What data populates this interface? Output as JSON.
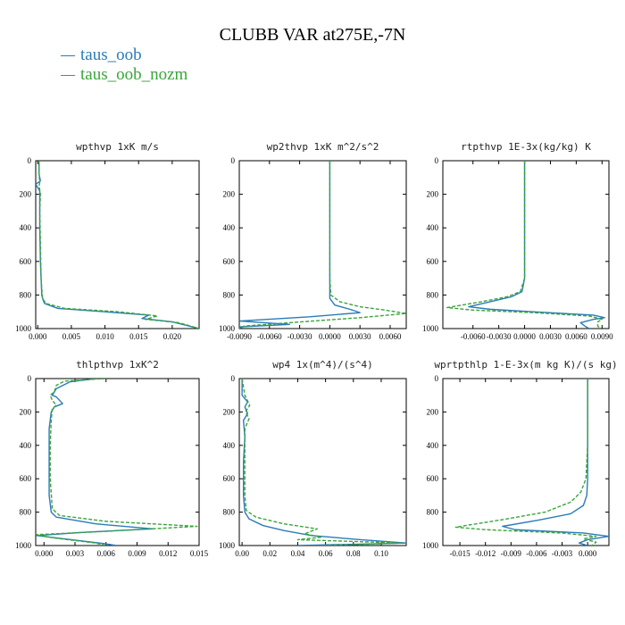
{
  "title": "CLUBB VAR at275E,-7N",
  "legend": [
    {
      "name": "taus_oob",
      "color": "#2b7bb9",
      "dash": "solid"
    },
    {
      "name": "taus_oob_nozm",
      "color": "#3aa53a",
      "dash": "dashed"
    }
  ],
  "chart_data": [
    {
      "type": "line",
      "title": "wpthvp 1xK m/s",
      "xlim": [
        -0.0003,
        0.024
      ],
      "ylim": [
        1000,
        0
      ],
      "xticks": [
        0.0,
        0.005,
        0.01,
        0.015,
        0.02
      ],
      "xtick_labels": [
        "0.000",
        "0.005",
        "0.010",
        "0.015",
        "0.020"
      ],
      "yticks": [
        0,
        200,
        400,
        600,
        800,
        1000
      ],
      "ytick_labels": [
        "0",
        "200",
        "400",
        "600",
        "800",
        "1000"
      ],
      "series": [
        {
          "name": "taus_oob",
          "points": [
            [
              0.0002,
              0
            ],
            [
              0.0002,
              80
            ],
            [
              0.0004,
              120
            ],
            [
              -0.0003,
              140
            ],
            [
              0.0003,
              180
            ],
            [
              0.0003,
              250
            ],
            [
              0.0003,
              400
            ],
            [
              0.0004,
              600
            ],
            [
              0.0006,
              800
            ],
            [
              0.0008,
              830
            ],
            [
              0.001,
              850
            ],
            [
              0.003,
              880
            ],
            [
              0.01,
              900
            ],
            [
              0.0165,
              920
            ],
            [
              0.0155,
              940
            ],
            [
              0.02,
              960
            ],
            [
              0.024,
              1000
            ]
          ]
        },
        {
          "name": "taus_oob_nozm",
          "points": [
            [
              0.0002,
              0
            ],
            [
              0.0002,
              80
            ],
            [
              0.0003,
              130
            ],
            [
              0.0002,
              150
            ],
            [
              0.0004,
              200
            ],
            [
              0.0003,
              300
            ],
            [
              0.0004,
              500
            ],
            [
              0.0005,
              700
            ],
            [
              0.0007,
              820
            ],
            [
              0.0012,
              850
            ],
            [
              0.004,
              880
            ],
            [
              0.012,
              900
            ],
            [
              0.0178,
              925
            ],
            [
              0.016,
              945
            ],
            [
              0.021,
              965
            ],
            [
              0.024,
              1000
            ]
          ]
        }
      ]
    },
    {
      "type": "line",
      "title": "wp2thvp 1xK m^2/s^2",
      "xlim": [
        -0.009,
        0.0076
      ],
      "ylim": [
        1000,
        0
      ],
      "xticks": [
        -0.009,
        -0.006,
        -0.003,
        0.0,
        0.003,
        0.006
      ],
      "xtick_labels": [
        "-0.0090",
        "-0.0060",
        "-0.0030",
        "0.0000",
        "0.0030",
        "0.0060"
      ],
      "yticks": [
        0,
        200,
        400,
        600,
        800,
        1000
      ],
      "ytick_labels": [
        "0",
        "200",
        "400",
        "600",
        "800",
        "1000"
      ],
      "series": [
        {
          "name": "taus_oob",
          "points": [
            [
              0.0,
              0
            ],
            [
              0.0,
              400
            ],
            [
              0.0,
              700
            ],
            [
              0.0,
              820
            ],
            [
              0.0005,
              860
            ],
            [
              0.002,
              885
            ],
            [
              0.003,
              905
            ],
            [
              -0.002,
              930
            ],
            [
              -0.009,
              955
            ],
            [
              -0.004,
              975
            ],
            [
              -0.009,
              990
            ],
            [
              -0.0085,
              1000
            ]
          ]
        },
        {
          "name": "taus_oob_nozm",
          "points": [
            [
              0.0,
              0
            ],
            [
              0.0,
              400
            ],
            [
              0.0,
              700
            ],
            [
              0.0001,
              800
            ],
            [
              0.001,
              840
            ],
            [
              0.003,
              870
            ],
            [
              0.0055,
              890
            ],
            [
              0.0076,
              910
            ],
            [
              0.003,
              935
            ],
            [
              -0.004,
              965
            ],
            [
              -0.0085,
              985
            ],
            [
              -0.009,
              1000
            ]
          ]
        }
      ]
    },
    {
      "type": "line",
      "title": "rtpthvp 1E-3x(kg/kg) K",
      "xlim": [
        -0.0095,
        0.0098
      ],
      "ylim": [
        1000,
        0
      ],
      "xticks": [
        -0.006,
        -0.003,
        0.0,
        0.003,
        0.006,
        0.009
      ],
      "xtick_labels": [
        "-0.0060",
        "-0.0030",
        "0.0000",
        "0.0030",
        "0.0060",
        "0.0090"
      ],
      "yticks": [
        0,
        200,
        400,
        600,
        800,
        1000
      ],
      "ytick_labels": [
        "0",
        "200",
        "400",
        "600",
        "800",
        "1000"
      ],
      "series": [
        {
          "name": "taus_oob",
          "points": [
            [
              0.0,
              0
            ],
            [
              0.0,
              400
            ],
            [
              0.0,
              700
            ],
            [
              -0.0003,
              780
            ],
            [
              -0.0015,
              810
            ],
            [
              -0.004,
              840
            ],
            [
              -0.0065,
              870
            ],
            [
              -0.004,
              885
            ],
            [
              0.001,
              900
            ],
            [
              0.008,
              920
            ],
            [
              0.0093,
              935
            ],
            [
              0.008,
              945
            ],
            [
              0.0065,
              965
            ],
            [
              0.007,
              985
            ],
            [
              0.0075,
              1000
            ]
          ]
        },
        {
          "name": "taus_oob_nozm",
          "points": [
            [
              0.0,
              0
            ],
            [
              0.0,
              400
            ],
            [
              0.0,
              700
            ],
            [
              -0.0005,
              780
            ],
            [
              -0.002,
              810
            ],
            [
              -0.005,
              840
            ],
            [
              -0.009,
              875
            ],
            [
              -0.006,
              890
            ],
            [
              0.001,
              905
            ],
            [
              0.0075,
              925
            ],
            [
              0.009,
              945
            ],
            [
              0.0085,
              960
            ],
            [
              0.0085,
              985
            ],
            [
              0.0088,
              1000
            ]
          ]
        }
      ]
    },
    {
      "type": "line",
      "title": "thlpthvp 1xK^2",
      "xlim": [
        -0.0008,
        0.015
      ],
      "ylim": [
        1000,
        0
      ],
      "xticks": [
        0.0,
        0.003,
        0.006,
        0.009,
        0.012,
        0.015
      ],
      "xtick_labels": [
        "0.000",
        "0.003",
        "0.006",
        "0.009",
        "0.012",
        "0.015"
      ],
      "yticks": [
        0,
        200,
        400,
        600,
        800,
        1000
      ],
      "ytick_labels": [
        "0",
        "200",
        "400",
        "600",
        "800",
        "1000"
      ],
      "series": [
        {
          "name": "taus_oob",
          "points": [
            [
              0.005,
              0
            ],
            [
              0.0025,
              20
            ],
            [
              0.0012,
              60
            ],
            [
              0.0008,
              100
            ],
            [
              0.0012,
              110
            ],
            [
              0.0018,
              150
            ],
            [
              0.001,
              170
            ],
            [
              0.0007,
              200
            ],
            [
              0.0005,
              300
            ],
            [
              0.0005,
              500
            ],
            [
              0.0005,
              700
            ],
            [
              0.0007,
              800
            ],
            [
              0.0012,
              830
            ],
            [
              0.005,
              870
            ],
            [
              0.0105,
              900
            ],
            [
              0.004,
              920
            ],
            [
              -0.0007,
              940
            ],
            [
              0.002,
              960
            ],
            [
              0.006,
              990
            ],
            [
              0.007,
              1000
            ]
          ]
        },
        {
          "name": "taus_oob_nozm",
          "points": [
            [
              0.006,
              0
            ],
            [
              0.002,
              15
            ],
            [
              0.0012,
              40
            ],
            [
              0.001,
              80
            ],
            [
              0.0006,
              100
            ],
            [
              0.0008,
              130
            ],
            [
              0.0012,
              160
            ],
            [
              0.0008,
              180
            ],
            [
              0.0007,
              250
            ],
            [
              0.0006,
              400
            ],
            [
              0.0006,
              600
            ],
            [
              0.0008,
              780
            ],
            [
              0.0015,
              820
            ],
            [
              0.006,
              855
            ],
            [
              0.0148,
              885
            ],
            [
              0.006,
              915
            ],
            [
              -0.0008,
              935
            ],
            [
              0.001,
              955
            ],
            [
              0.005,
              985
            ],
            [
              0.006,
              1000
            ]
          ]
        }
      ]
    },
    {
      "type": "line",
      "title": "wp4 1x(m^4)/(s^4)",
      "xlim": [
        -0.002,
        0.118
      ],
      "ylim": [
        1000,
        0
      ],
      "xticks": [
        0.0,
        0.02,
        0.04,
        0.06,
        0.08,
        0.1
      ],
      "xtick_labels": [
        "0.00",
        "0.02",
        "0.04",
        "0.06",
        "0.08",
        "0.10"
      ],
      "yticks": [
        0,
        200,
        400,
        600,
        800,
        1000
      ],
      "ytick_labels": [
        "0",
        "200",
        "400",
        "600",
        "800",
        "1000"
      ],
      "series": [
        {
          "name": "taus_oob",
          "points": [
            [
              0.0,
              0
            ],
            [
              0.0,
              100
            ],
            [
              0.004,
              140
            ],
            [
              0.002,
              170
            ],
            [
              0.004,
              210
            ],
            [
              0.001,
              250
            ],
            [
              0.002,
              350
            ],
            [
              0.001,
              500
            ],
            [
              0.001,
              700
            ],
            [
              0.002,
              800
            ],
            [
              0.005,
              840
            ],
            [
              0.015,
              880
            ],
            [
              0.03,
              910
            ],
            [
              0.05,
              940
            ],
            [
              0.085,
              965
            ],
            [
              0.118,
              985
            ],
            [
              0.04,
              1000
            ]
          ]
        },
        {
          "name": "taus_oob_nozm",
          "points": [
            [
              0.0,
              0
            ],
            [
              0.002,
              100
            ],
            [
              0.0055,
              160
            ],
            [
              0.0025,
              200
            ],
            [
              0.005,
              240
            ],
            [
              0.002,
              300
            ],
            [
              0.002,
              500
            ],
            [
              0.002,
              700
            ],
            [
              0.003,
              790
            ],
            [
              0.01,
              830
            ],
            [
              0.03,
              870
            ],
            [
              0.054,
              900
            ],
            [
              0.045,
              930
            ],
            [
              0.057,
              950
            ],
            [
              0.04,
              965
            ],
            [
              0.115,
              985
            ],
            [
              0.06,
              1000
            ]
          ]
        }
      ]
    },
    {
      "type": "line",
      "title": "wprtpthlp 1-E-3x(m kg K)/(s kg)",
      "xlim": [
        -0.017,
        0.0025
      ],
      "ylim": [
        1000,
        0
      ],
      "xticks": [
        -0.015,
        -0.012,
        -0.009,
        -0.006,
        -0.003,
        0.0
      ],
      "xtick_labels": [
        "-0.015",
        "-0.012",
        "-0.009",
        "-0.006",
        "-0.003",
        "0.000"
      ],
      "yticks": [
        0,
        200,
        400,
        600,
        800,
        1000
      ],
      "ytick_labels": [
        "0",
        "200",
        "400",
        "600",
        "800",
        "1000"
      ],
      "series": [
        {
          "name": "taus_oob",
          "points": [
            [
              0.0,
              0
            ],
            [
              0.0,
              400
            ],
            [
              0.0,
              600
            ],
            [
              -0.0001,
              700
            ],
            [
              -0.0005,
              760
            ],
            [
              -0.002,
              810
            ],
            [
              -0.006,
              850
            ],
            [
              -0.01,
              885
            ],
            [
              -0.0085,
              905
            ],
            [
              -0.0005,
              925
            ],
            [
              0.0025,
              945
            ],
            [
              0.0,
              965
            ],
            [
              -0.001,
              985
            ],
            [
              0.0,
              1000
            ]
          ]
        },
        {
          "name": "taus_oob_nozm",
          "points": [
            [
              0.0,
              0
            ],
            [
              0.0,
              400
            ],
            [
              -0.0002,
              600
            ],
            [
              -0.0008,
              680
            ],
            [
              -0.002,
              740
            ],
            [
              -0.005,
              800
            ],
            [
              -0.01,
              845
            ],
            [
              -0.0155,
              890
            ],
            [
              -0.012,
              905
            ],
            [
              -0.003,
              925
            ],
            [
              0.001,
              945
            ],
            [
              -0.0005,
              960
            ],
            [
              0.001,
              980
            ],
            [
              0.0005,
              1000
            ]
          ]
        }
      ]
    }
  ]
}
